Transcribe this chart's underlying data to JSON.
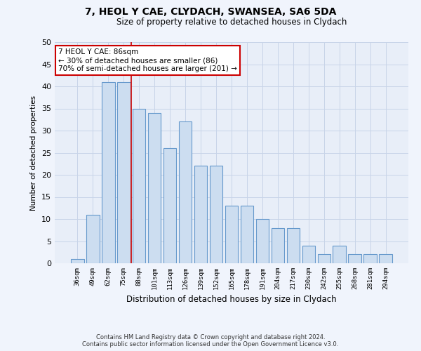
{
  "title": "7, HEOL Y CAE, CLYDACH, SWANSEA, SA6 5DA",
  "subtitle": "Size of property relative to detached houses in Clydach",
  "xlabel": "Distribution of detached houses by size in Clydach",
  "ylabel": "Number of detached properties",
  "categories": [
    "36sqm",
    "49sqm",
    "62sqm",
    "75sqm",
    "88sqm",
    "101sqm",
    "113sqm",
    "126sqm",
    "139sqm",
    "152sqm",
    "165sqm",
    "178sqm",
    "191sqm",
    "204sqm",
    "217sqm",
    "230sqm",
    "242sqm",
    "255sqm",
    "268sqm",
    "281sqm",
    "294sqm"
  ],
  "values": [
    1,
    11,
    41,
    41,
    35,
    34,
    26,
    32,
    22,
    22,
    13,
    13,
    10,
    8,
    8,
    4,
    2,
    4,
    2,
    2,
    2
  ],
  "bar_color": "#ccddf0",
  "bar_edge_color": "#6699cc",
  "vline_color": "#cc0000",
  "vline_x_index": 3.5,
  "annotation_title": "7 HEOL Y CAE: 86sqm",
  "annotation_line1": "← 30% of detached houses are smaller (86)",
  "annotation_line2": "70% of semi-detached houses are larger (201) →",
  "annotation_box_facecolor": "#ffffff",
  "annotation_box_edgecolor": "#cc0000",
  "ylim": [
    0,
    50
  ],
  "yticks": [
    0,
    5,
    10,
    15,
    20,
    25,
    30,
    35,
    40,
    45,
    50
  ],
  "grid_color": "#c8d4e8",
  "plot_bg_color": "#e8eef8",
  "fig_bg_color": "#f0f4fc",
  "footer_line1": "Contains HM Land Registry data © Crown copyright and database right 2024.",
  "footer_line2": "Contains public sector information licensed under the Open Government Licence v3.0."
}
